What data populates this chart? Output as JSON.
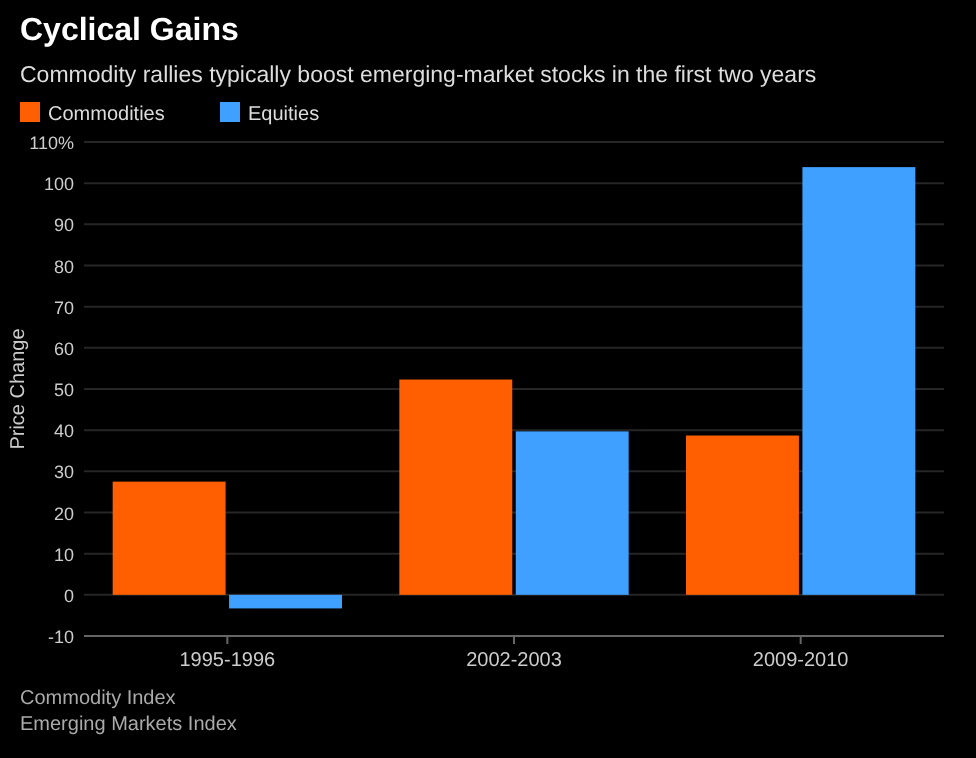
{
  "chart_data": {
    "type": "bar",
    "title": "Cyclical Gains",
    "subtitle": "Commodity rallies typically boost emerging-market stocks in the first two years",
    "ylabel": "Price Change",
    "categories": [
      "1995-1996",
      "2002-2003",
      "2009-2010"
    ],
    "series": [
      {
        "name": "Commodities",
        "color": "#ff5f00",
        "values": [
          27.5,
          52.3,
          38.7
        ]
      },
      {
        "name": "Equities",
        "color": "#3fa0ff",
        "values": [
          -3.3,
          39.7,
          103.9
        ]
      }
    ],
    "ylim": [
      -10,
      110
    ],
    "yticks": [
      -10,
      0,
      10,
      20,
      30,
      40,
      50,
      60,
      70,
      80,
      90,
      100,
      {
        "value": 110,
        "label": "110%"
      }
    ],
    "grid": "y",
    "legend": "top left",
    "annotations": [
      "Commodity Index",
      "Emerging Markets Index"
    ]
  }
}
